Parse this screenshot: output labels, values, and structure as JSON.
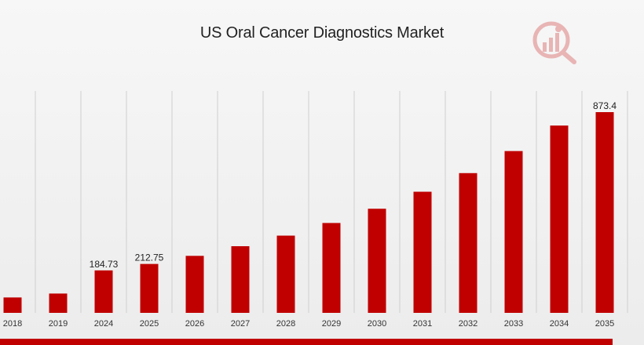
{
  "page": {
    "title": "US Oral Cancer Diagnostics Market"
  },
  "colors": {
    "bar": "#c00000",
    "grid": "#cfcfcf",
    "band": "#c00000"
  },
  "icons": {
    "logo": "market-research-logo-icon"
  },
  "chart_data": {
    "type": "bar",
    "title": "US Oral Cancer Diagnostics Market",
    "xlabel": "",
    "ylabel": "",
    "categories": [
      "2018",
      "2019",
      "2024",
      "2025",
      "2026",
      "2027",
      "2028",
      "2029",
      "2030",
      "2031",
      "2032",
      "2033",
      "2034",
      "2035"
    ],
    "values": [
      67,
      84,
      184.73,
      212.75,
      248,
      290,
      336,
      391,
      453,
      527,
      608,
      704,
      815,
      873.4
    ],
    "data_labels": [
      "",
      "",
      "184.73",
      "212.75",
      "",
      "",
      "",
      "",
      "",
      "",
      "",
      "",
      "",
      "873.4"
    ],
    "ylim": [
      0,
      950
    ],
    "grid": "vertical",
    "legend": "none"
  }
}
